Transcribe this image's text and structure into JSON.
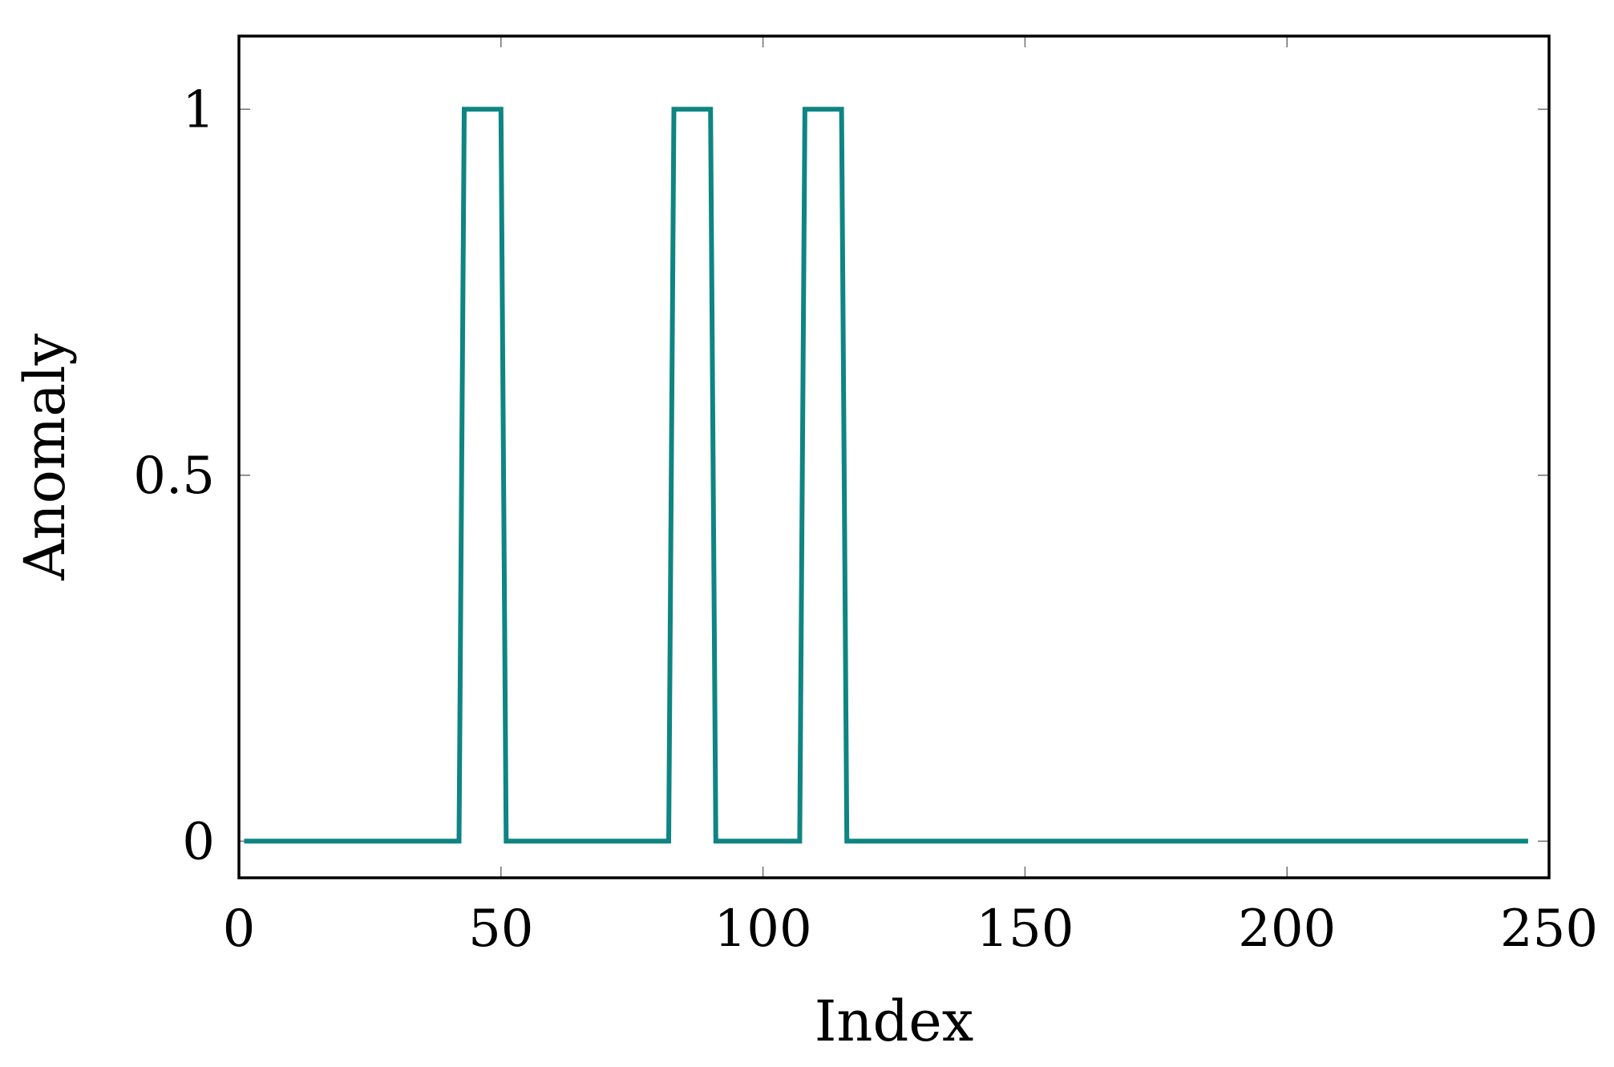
{
  "chart_data": {
    "type": "line",
    "xlabel": "Index",
    "ylabel": "Anomaly",
    "xlim": [
      0,
      250
    ],
    "ylim": [
      -0.05,
      1.1
    ],
    "xticks": [
      0,
      50,
      100,
      150,
      200,
      250
    ],
    "xtick_labels": [
      "0",
      "50",
      "100",
      "150",
      "200",
      "250"
    ],
    "yticks": [
      0,
      0.5,
      1
    ],
    "ytick_labels": [
      "0",
      "0.5",
      "1"
    ],
    "grid": false,
    "series": [
      {
        "color": "#0e8583",
        "x": [
          1,
          42,
          43,
          50,
          51,
          82,
          83,
          90,
          91,
          107,
          108,
          115,
          116,
          246
        ],
        "y": [
          0,
          0,
          1,
          1,
          0,
          0,
          1,
          1,
          0,
          0,
          1,
          1,
          0,
          0
        ]
      }
    ]
  }
}
